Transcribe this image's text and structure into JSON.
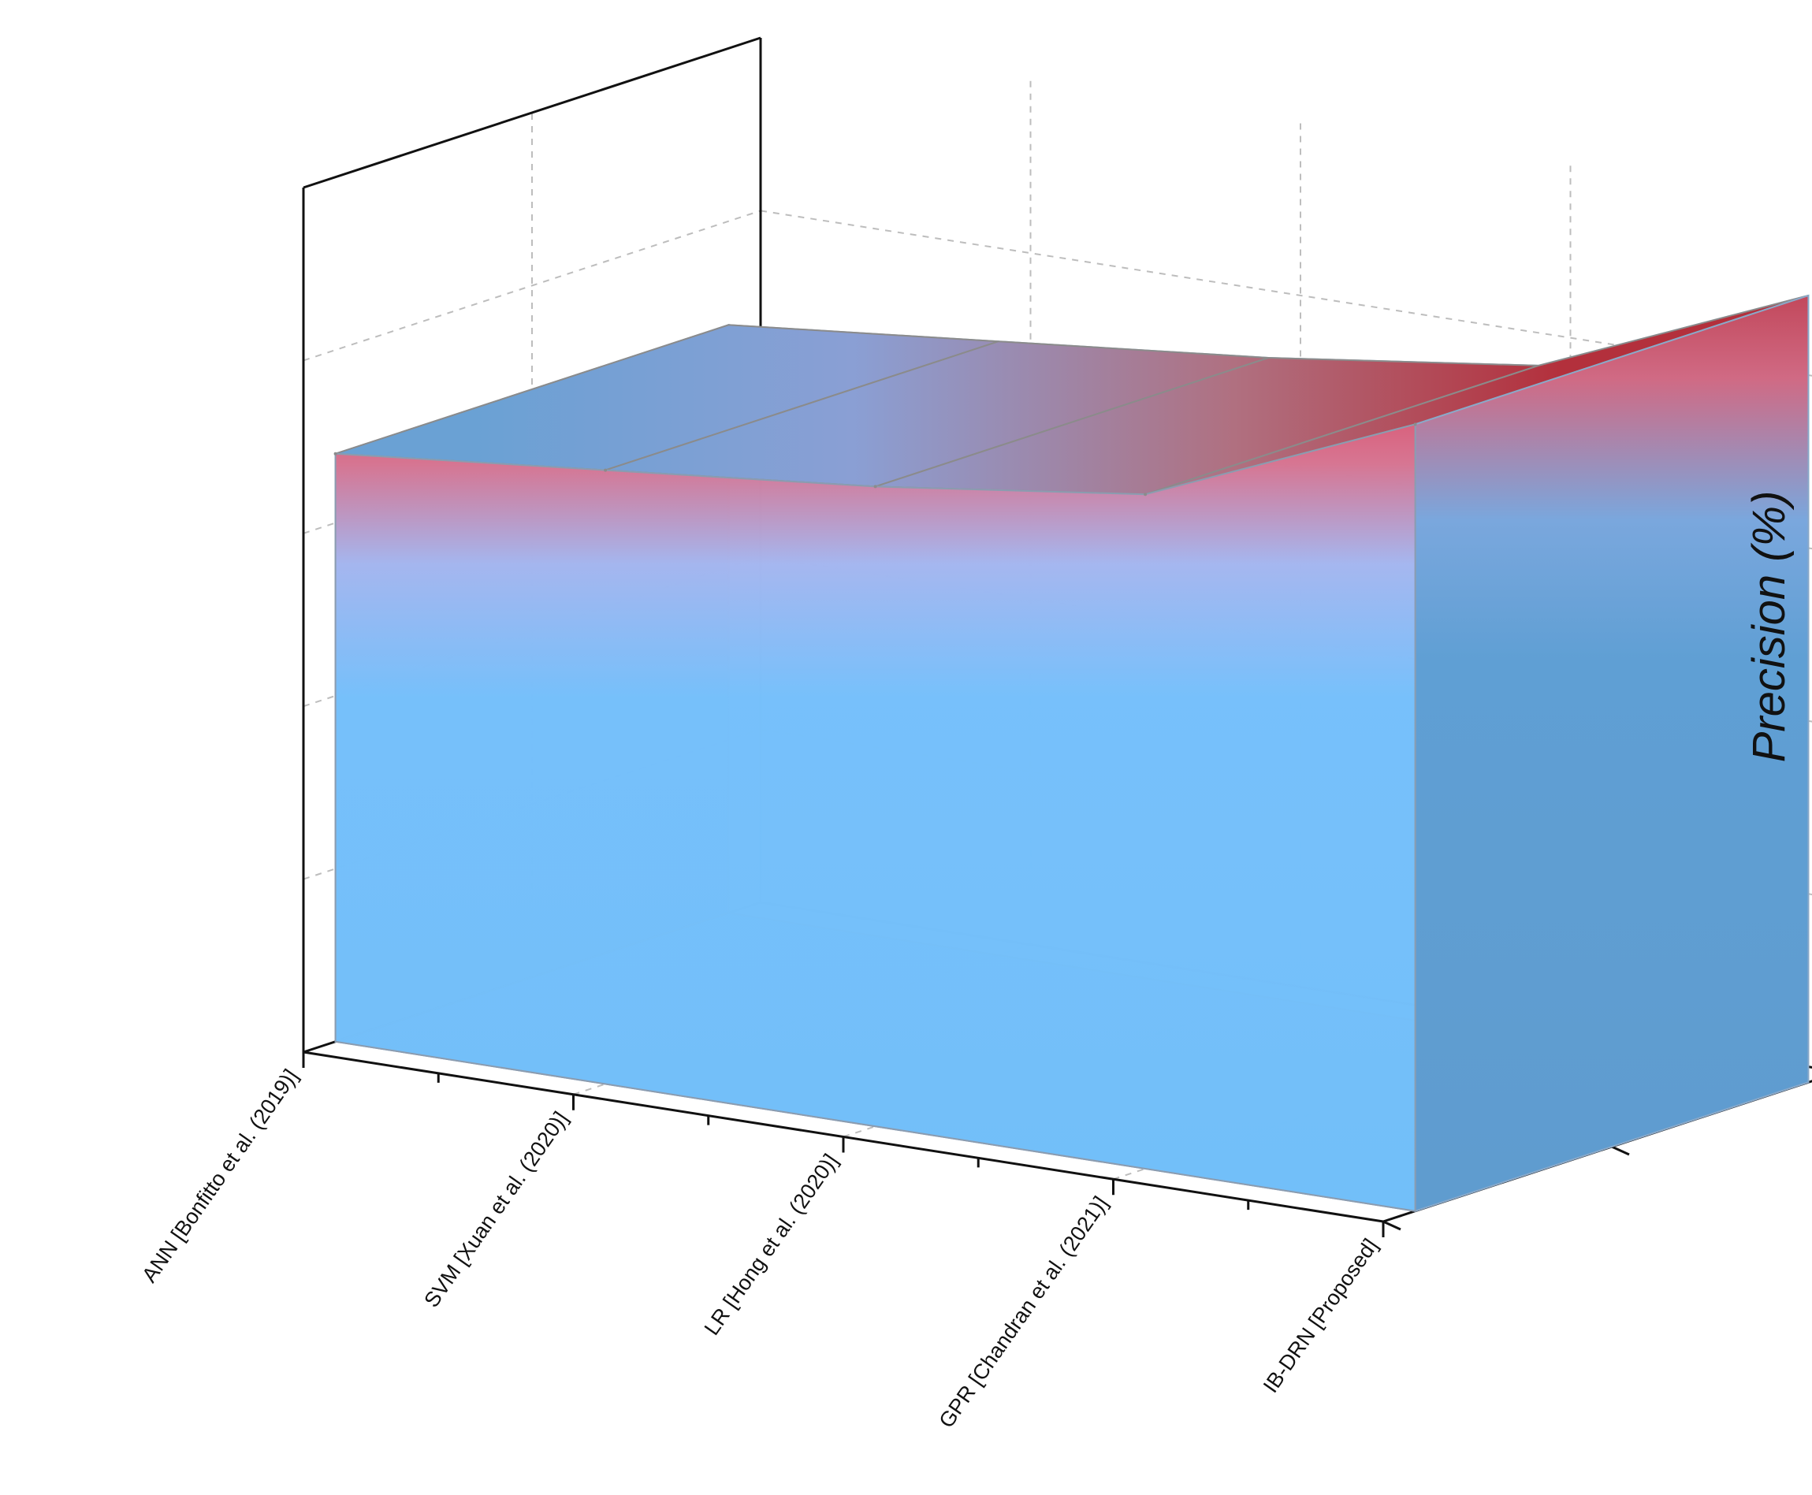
{
  "chart_data": {
    "type": "area",
    "title": "",
    "xlabel": "",
    "ylabel": "Precision (%)",
    "categories": [
      "ANN [Bonfitto et al. (2019)]",
      "SVM [Xuan et al. (2020)]",
      "LR [Hong et al. (2020)]",
      "GPR [Chandran et al. (2021)]",
      "IB-DRN [Proposed]"
    ],
    "values": [
      68,
      71,
      74,
      78,
      91
    ],
    "ylim": [
      0,
      100
    ],
    "yticks": [
      "0",
      "20",
      "40",
      "60",
      "80",
      "100"
    ],
    "grid": true,
    "projection": "3d",
    "colors": {
      "low": "#74c0fc",
      "mid": "#a4b8ef",
      "high": "#b5283c",
      "side": "#5fa0d6"
    }
  }
}
